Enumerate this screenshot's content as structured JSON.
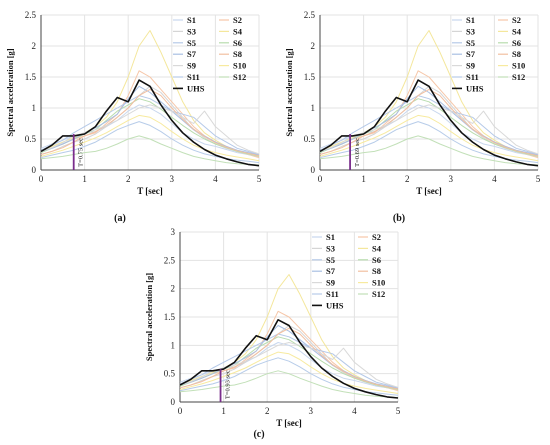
{
  "chart_data": [
    {
      "panel_label": "(a)",
      "type": "line",
      "xlabel": "T [sec]",
      "ylabel": "Spectral acceleration [g]",
      "xlim": [
        0,
        5
      ],
      "ylim": [
        0,
        2.5
      ],
      "xticks": [
        0,
        1,
        2,
        3,
        4,
        5
      ],
      "yticks": [
        0,
        0.5,
        1,
        1.5,
        2,
        2.5
      ],
      "grid": true,
      "legend_position": "top-right",
      "marker": {
        "x": 0.75,
        "label": "T=0.75 sec",
        "color": "#7a2d8c"
      }
    },
    {
      "panel_label": "(b)",
      "type": "line",
      "xlabel": "T [sec]",
      "ylabel": "Spectral acceleration [g]",
      "xlim": [
        0,
        5
      ],
      "ylim": [
        0,
        2.5
      ],
      "xticks": [
        0,
        1,
        2,
        3,
        4,
        5
      ],
      "yticks": [
        0,
        0.5,
        1,
        1.5,
        2,
        2.5
      ],
      "grid": true,
      "legend_position": "top-right",
      "marker": {
        "x": 0.69,
        "label": "T=0.69 sec",
        "color": "#7a2d8c"
      }
    },
    {
      "panel_label": "(c)",
      "type": "line",
      "xlabel": "T [sec]",
      "ylabel": "Spectral acceleration [g]",
      "xlim": [
        0,
        5
      ],
      "ylim": [
        0,
        3
      ],
      "xticks": [
        0,
        1,
        2,
        3,
        4,
        5
      ],
      "yticks": [
        0,
        0.5,
        1,
        1.5,
        2,
        2.5,
        3
      ],
      "grid": true,
      "legend_position": "top-right",
      "marker": {
        "x": 0.93,
        "label": "T=0.93 sec",
        "color": "#7a2d8c"
      }
    }
  ],
  "series": [
    {
      "name": "S1",
      "color": "#c8d7ee",
      "values": [
        0.35,
        0.42,
        0.48,
        0.55,
        0.6,
        0.62,
        0.7,
        0.8,
        0.95,
        1.05,
        1.0,
        0.9,
        0.75,
        0.6,
        0.5,
        0.42,
        0.38,
        0.33,
        0.28,
        0.25,
        0.22
      ]
    },
    {
      "name": "S2",
      "color": "#f6c6a8",
      "values": [
        0.3,
        0.35,
        0.42,
        0.5,
        0.55,
        0.6,
        0.75,
        0.9,
        1.2,
        1.6,
        1.5,
        1.3,
        1.1,
        0.9,
        0.7,
        0.55,
        0.45,
        0.38,
        0.3,
        0.25,
        0.2
      ]
    },
    {
      "name": "S3",
      "color": "#d5d5d5",
      "values": [
        0.25,
        0.3,
        0.38,
        0.45,
        0.5,
        0.58,
        0.7,
        0.85,
        1.0,
        1.2,
        1.35,
        1.25,
        1.05,
        0.85,
        0.65,
        0.52,
        0.42,
        0.35,
        0.3,
        0.25,
        0.22
      ]
    },
    {
      "name": "S4",
      "color": "#f4e79c",
      "values": [
        0.3,
        0.38,
        0.45,
        0.52,
        0.6,
        0.7,
        0.85,
        1.1,
        1.5,
        2.0,
        2.25,
        1.9,
        1.5,
        1.1,
        0.8,
        0.6,
        0.48,
        0.38,
        0.3,
        0.26,
        0.22
      ]
    },
    {
      "name": "S5",
      "color": "#b5c9e8",
      "values": [
        0.32,
        0.4,
        0.48,
        0.6,
        0.7,
        0.8,
        0.9,
        1.0,
        1.1,
        1.2,
        1.15,
        1.05,
        0.95,
        0.9,
        0.85,
        0.7,
        0.55,
        0.45,
        0.35,
        0.3,
        0.25
      ]
    },
    {
      "name": "S6",
      "color": "#b8dcae",
      "values": [
        0.28,
        0.35,
        0.42,
        0.5,
        0.58,
        0.65,
        0.8,
        0.95,
        1.05,
        1.15,
        1.1,
        0.98,
        0.85,
        0.72,
        0.6,
        0.5,
        0.42,
        0.36,
        0.3,
        0.26,
        0.22
      ]
    },
    {
      "name": "S7",
      "color": "#a9bfe3",
      "values": [
        0.3,
        0.35,
        0.42,
        0.5,
        0.6,
        0.68,
        0.78,
        0.9,
        1.15,
        1.35,
        1.25,
        1.1,
        0.95,
        0.8,
        0.65,
        0.55,
        0.45,
        0.38,
        0.32,
        0.28,
        0.24
      ]
    },
    {
      "name": "S8",
      "color": "#f2bfa0",
      "values": [
        0.25,
        0.3,
        0.36,
        0.45,
        0.55,
        0.62,
        0.72,
        0.85,
        1.0,
        1.2,
        1.3,
        1.2,
        1.0,
        0.82,
        0.66,
        0.54,
        0.44,
        0.37,
        0.31,
        0.27,
        0.23
      ]
    },
    {
      "name": "S9",
      "color": "#d9d9d9",
      "values": [
        0.3,
        0.36,
        0.44,
        0.55,
        0.6,
        0.65,
        0.72,
        0.8,
        0.9,
        1.0,
        1.05,
        1.0,
        0.95,
        0.85,
        0.75,
        0.95,
        0.7,
        0.55,
        0.4,
        0.32,
        0.26
      ]
    },
    {
      "name": "S10",
      "color": "#f7ea9f",
      "values": [
        0.22,
        0.27,
        0.32,
        0.38,
        0.45,
        0.52,
        0.6,
        0.7,
        0.8,
        0.88,
        0.85,
        0.75,
        0.62,
        0.5,
        0.4,
        0.33,
        0.28,
        0.24,
        0.21,
        0.18,
        0.15
      ]
    },
    {
      "name": "S11",
      "color": "#b7cce9",
      "values": [
        0.2,
        0.24,
        0.28,
        0.32,
        0.38,
        0.45,
        0.55,
        0.65,
        0.72,
        0.78,
        0.72,
        0.62,
        0.5,
        0.4,
        0.32,
        0.26,
        0.22,
        0.18,
        0.16,
        0.14,
        0.12
      ]
    },
    {
      "name": "S12",
      "color": "#c2e0b8",
      "values": [
        0.18,
        0.2,
        0.22,
        0.25,
        0.28,
        0.3,
        0.35,
        0.42,
        0.5,
        0.55,
        0.5,
        0.42,
        0.35,
        0.28,
        0.22,
        0.18,
        0.15,
        0.12,
        0.1,
        0.09,
        0.08
      ]
    },
    {
      "name": "UHS",
      "color": "#111111",
      "values": [
        0.3,
        0.4,
        0.55,
        0.55,
        0.58,
        0.7,
        0.95,
        1.17,
        1.1,
        1.45,
        1.35,
        1.05,
        0.8,
        0.6,
        0.45,
        0.33,
        0.24,
        0.18,
        0.13,
        0.09,
        0.07
      ]
    }
  ],
  "x": [
    0,
    0.25,
    0.5,
    0.75,
    1.0,
    1.25,
    1.5,
    1.75,
    2.0,
    2.25,
    2.5,
    2.75,
    3.0,
    3.25,
    3.5,
    3.75,
    4.0,
    4.25,
    4.5,
    4.75,
    5.0
  ]
}
